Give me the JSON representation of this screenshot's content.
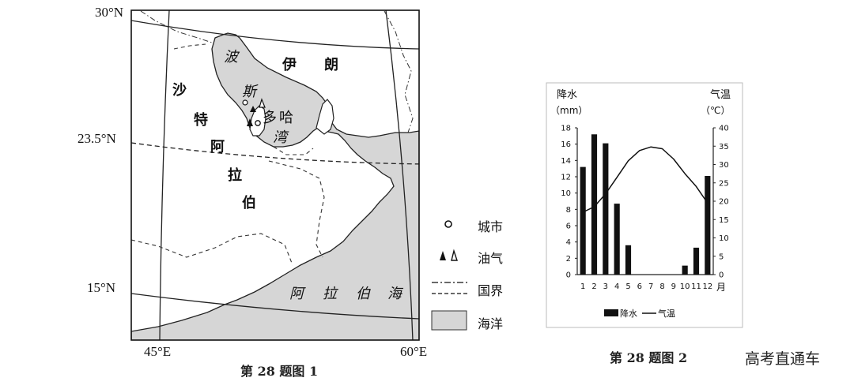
{
  "map": {
    "caption": "第 28 题图 1",
    "lat_labels": [
      "30°N",
      "23.5°N",
      "15°N"
    ],
    "lon_labels": [
      "45°E",
      "60°E"
    ],
    "places": {
      "persian_gulf": [
        "波",
        "斯",
        "湾"
      ],
      "iran": [
        "伊",
        "朗"
      ],
      "saudi_arabia": [
        "沙",
        "特",
        "阿",
        "拉",
        "伯"
      ],
      "doha": [
        "多",
        "哈"
      ],
      "arabian_sea": [
        "阿",
        "拉",
        "伯",
        "海"
      ]
    },
    "legend": {
      "city": "城市",
      "oil_gas": "油气",
      "border_intl": "国界",
      "ocean": "海洋"
    },
    "colors": {
      "sea": "#d6d6d6",
      "ink": "#111111"
    }
  },
  "chart_data": {
    "type": "bar",
    "caption": "第 28 题图 2",
    "categories": [
      "1",
      "2",
      "3",
      "4",
      "5",
      "6",
      "7",
      "8",
      "9",
      "10",
      "11",
      "12"
    ],
    "x_unit": "月",
    "series": [
      {
        "name": "降水",
        "kind": "bar",
        "values": [
          13.2,
          17.2,
          16.1,
          8.7,
          3.6,
          0,
          0,
          0,
          0,
          1.1,
          3.3,
          12.1
        ]
      },
      {
        "name": "气温",
        "kind": "line",
        "values": [
          17,
          18.5,
          22,
          26.5,
          31,
          33.8,
          34.8,
          34.3,
          31.5,
          27.5,
          24,
          19.5
        ]
      }
    ],
    "left_axis": {
      "label_line1": "降水",
      "label_line2": "（mm）",
      "ylim": [
        0,
        18
      ],
      "ticks": [
        0,
        2,
        4,
        6,
        8,
        10,
        12,
        14,
        16,
        18
      ]
    },
    "right_axis": {
      "label_line1": "气温",
      "label_line2": "（℃）",
      "ylim": [
        0,
        40
      ],
      "ticks": [
        0,
        5,
        10,
        15,
        20,
        25,
        30,
        35,
        40
      ]
    },
    "legend_position": "bottom"
  },
  "watermark": "高考直通车"
}
